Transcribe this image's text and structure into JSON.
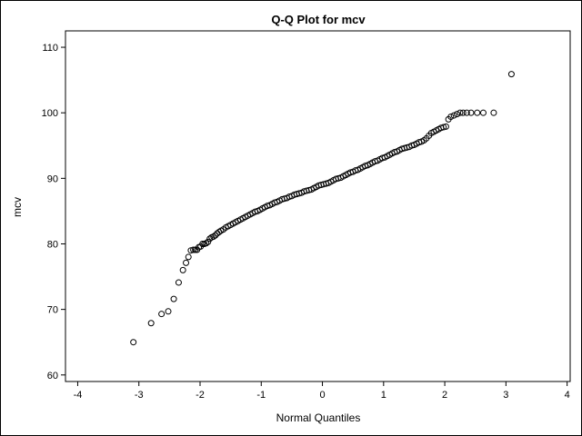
{
  "chart_data": {
    "type": "scatter",
    "title": "Q-Q Plot for mcv",
    "xlabel": "Normal Quantiles",
    "ylabel": "mcv",
    "xlim": [
      -4.2,
      4.05
    ],
    "ylim": [
      59,
      112.5
    ],
    "xticks": [
      -4,
      -3,
      -2,
      -1,
      0,
      1,
      2,
      3,
      4
    ],
    "yticks": [
      60,
      70,
      80,
      90,
      100,
      110
    ],
    "grid": false,
    "legend": "none",
    "marker": "open-circle",
    "series": [
      {
        "points": [
          [
            -3.09,
            65
          ],
          [
            -2.8,
            67.9
          ],
          [
            -2.63,
            69.3
          ],
          [
            -2.52,
            69.7
          ],
          [
            -2.43,
            71.6
          ],
          [
            -2.35,
            74.1
          ],
          [
            -2.28,
            76
          ],
          [
            -2.23,
            77.1
          ],
          [
            -2.19,
            78
          ],
          [
            -2.15,
            79
          ],
          [
            -2.11,
            79.1
          ],
          [
            -2.08,
            79.1
          ],
          [
            -2.05,
            79.1
          ],
          [
            -2.02,
            79.5
          ],
          [
            -1.99,
            79.6
          ],
          [
            -1.96,
            80
          ],
          [
            -1.93,
            80
          ],
          [
            -1.9,
            80.1
          ],
          [
            -1.87,
            80.3
          ],
          [
            -1.84,
            80.8
          ],
          [
            -1.81,
            81
          ],
          [
            -1.78,
            81.1
          ],
          [
            -1.75,
            81.3
          ],
          [
            -1.72,
            81.6
          ],
          [
            -1.69,
            81.8
          ],
          [
            -1.66,
            82
          ],
          [
            -1.62,
            82.2
          ],
          [
            -1.58,
            82.5
          ],
          [
            -1.54,
            82.7
          ],
          [
            -1.5,
            82.9
          ],
          [
            -1.46,
            83.1
          ],
          [
            -1.42,
            83.3
          ],
          [
            -1.38,
            83.5
          ],
          [
            -1.34,
            83.7
          ],
          [
            -1.3,
            83.9
          ],
          [
            -1.26,
            84.1
          ],
          [
            -1.22,
            84.3
          ],
          [
            -1.18,
            84.5
          ],
          [
            -1.14,
            84.7
          ],
          [
            -1.1,
            84.9
          ],
          [
            -1.06,
            85
          ],
          [
            -1.02,
            85.2
          ],
          [
            -0.98,
            85.4
          ],
          [
            -0.94,
            85.6
          ],
          [
            -0.9,
            85.8
          ],
          [
            -0.86,
            85.9
          ],
          [
            -0.82,
            86.1
          ],
          [
            -0.78,
            86.3
          ],
          [
            -0.74,
            86.4
          ],
          [
            -0.7,
            86.6
          ],
          [
            -0.66,
            86.8
          ],
          [
            -0.62,
            86.9
          ],
          [
            -0.58,
            87
          ],
          [
            -0.54,
            87.2
          ],
          [
            -0.5,
            87.3
          ],
          [
            -0.46,
            87.5
          ],
          [
            -0.42,
            87.6
          ],
          [
            -0.38,
            87.7
          ],
          [
            -0.34,
            87.8
          ],
          [
            -0.3,
            88
          ],
          [
            -0.26,
            88.1
          ],
          [
            -0.22,
            88.2
          ],
          [
            -0.18,
            88.3
          ],
          [
            -0.14,
            88.5
          ],
          [
            -0.1,
            88.7
          ],
          [
            -0.06,
            88.9
          ],
          [
            -0.02,
            89
          ],
          [
            0.02,
            89.1
          ],
          [
            0.06,
            89.2
          ],
          [
            0.1,
            89.3
          ],
          [
            0.14,
            89.5
          ],
          [
            0.18,
            89.7
          ],
          [
            0.22,
            89.9
          ],
          [
            0.26,
            90
          ],
          [
            0.3,
            90.1
          ],
          [
            0.34,
            90.3
          ],
          [
            0.38,
            90.5
          ],
          [
            0.42,
            90.7
          ],
          [
            0.46,
            90.9
          ],
          [
            0.5,
            91
          ],
          [
            0.54,
            91.2
          ],
          [
            0.58,
            91.3
          ],
          [
            0.62,
            91.5
          ],
          [
            0.66,
            91.7
          ],
          [
            0.7,
            91.9
          ],
          [
            0.74,
            92
          ],
          [
            0.78,
            92.2
          ],
          [
            0.82,
            92.4
          ],
          [
            0.86,
            92.6
          ],
          [
            0.9,
            92.7
          ],
          [
            0.94,
            92.9
          ],
          [
            0.98,
            93.1
          ],
          [
            1.02,
            93.2
          ],
          [
            1.06,
            93.4
          ],
          [
            1.1,
            93.6
          ],
          [
            1.14,
            93.8
          ],
          [
            1.18,
            94
          ],
          [
            1.22,
            94.1
          ],
          [
            1.26,
            94.3
          ],
          [
            1.3,
            94.5
          ],
          [
            1.34,
            94.6
          ],
          [
            1.38,
            94.7
          ],
          [
            1.42,
            94.8
          ],
          [
            1.46,
            95
          ],
          [
            1.5,
            95.1
          ],
          [
            1.54,
            95.3
          ],
          [
            1.58,
            95.5
          ],
          [
            1.62,
            95.6
          ],
          [
            1.66,
            95.8
          ],
          [
            1.7,
            96.1
          ],
          [
            1.74,
            96.5
          ],
          [
            1.78,
            96.9
          ],
          [
            1.82,
            97.1
          ],
          [
            1.86,
            97.3
          ],
          [
            1.9,
            97.5
          ],
          [
            1.94,
            97.7
          ],
          [
            1.98,
            97.8
          ],
          [
            2.02,
            97.9
          ],
          [
            2.06,
            99
          ],
          [
            2.1,
            99.4
          ],
          [
            2.15,
            99.6
          ],
          [
            2.2,
            99.8
          ],
          [
            2.25,
            100
          ],
          [
            2.3,
            100
          ],
          [
            2.36,
            100
          ],
          [
            2.43,
            100
          ],
          [
            2.53,
            100
          ],
          [
            2.63,
            100
          ],
          [
            2.8,
            100
          ],
          [
            3.09,
            105.9
          ]
        ]
      }
    ]
  }
}
